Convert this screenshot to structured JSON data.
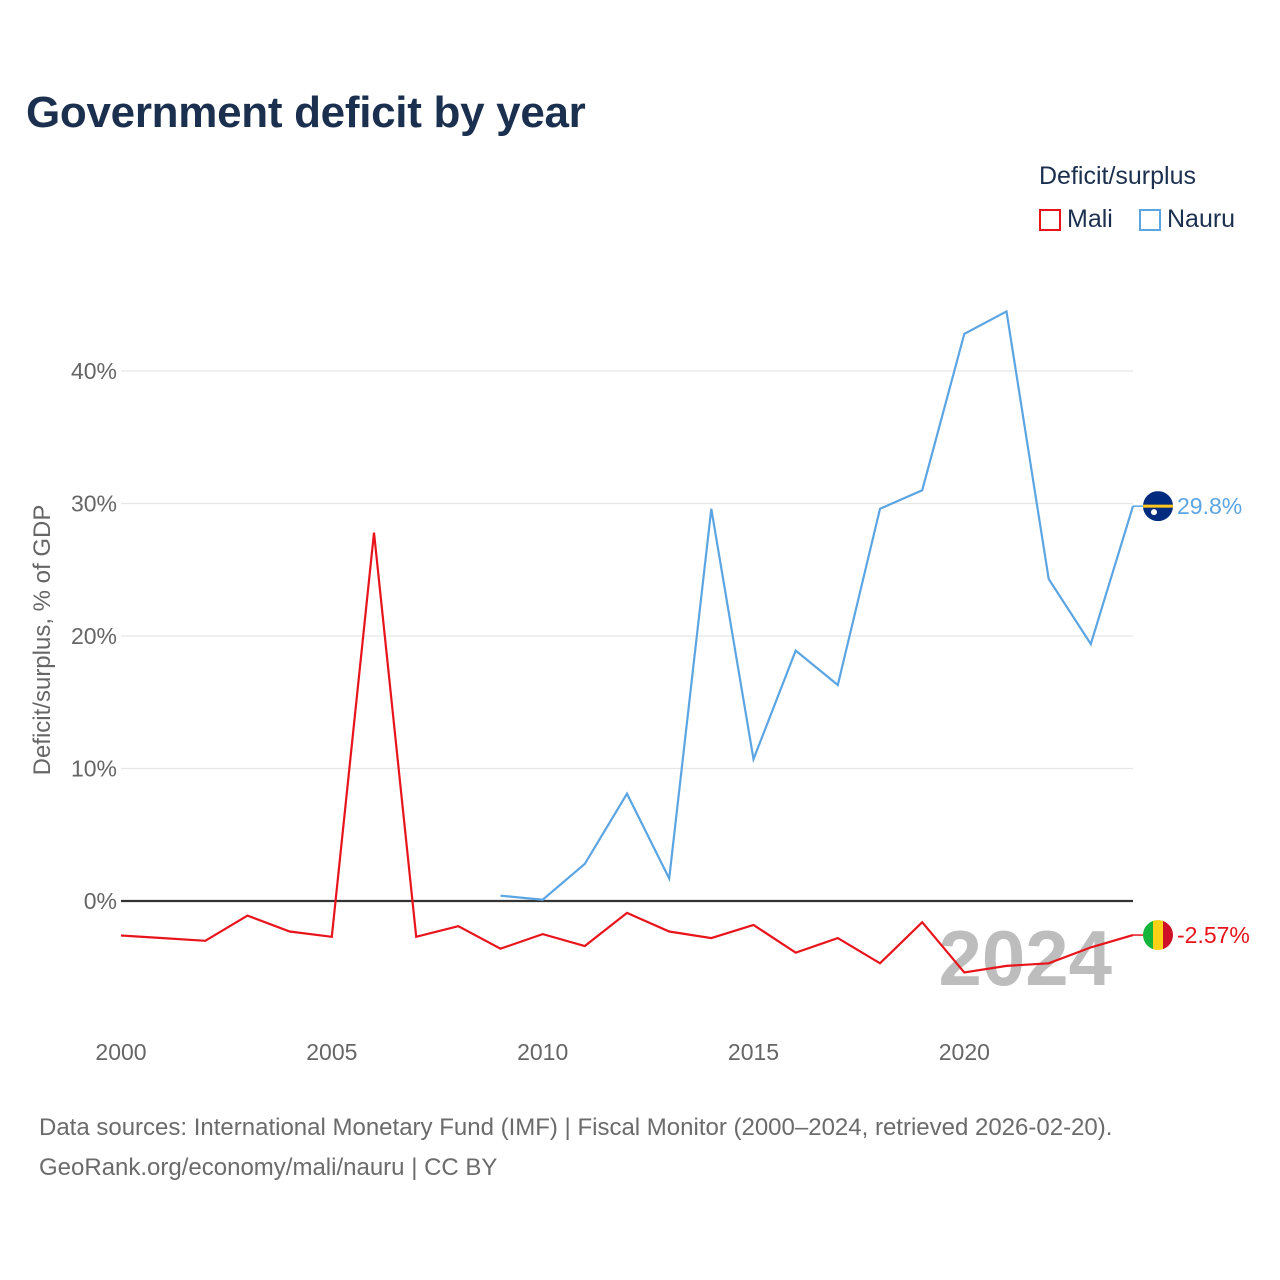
{
  "header": {
    "title": "Government deficit by year"
  },
  "legend": {
    "title": "Deficit/surplus",
    "items": [
      {
        "label": "Mali",
        "color": "#e8141b"
      },
      {
        "label": "Nauru",
        "color": "#5ca5e3"
      }
    ]
  },
  "source": {
    "line1": "Data sources: International Monetary Fund (IMF) | Fiscal Monitor (2000–2024, retrieved 2026-02-20).",
    "line2": "GeoRank.org/economy/mali/nauru | CC BY"
  },
  "chart_data": {
    "type": "line",
    "title": "Government deficit by year",
    "xlabel": "",
    "ylabel": "Deficit/surplus, % of GDP",
    "xlim": [
      2000,
      2024
    ],
    "ylim": [
      -9,
      45
    ],
    "x_ticks": [
      2000,
      2005,
      2010,
      2015,
      2020
    ],
    "y_ticks": [
      0,
      10,
      20,
      30,
      40
    ],
    "y_tick_labels": [
      "0%",
      "10%",
      "20%",
      "30%",
      "40%"
    ],
    "grid": true,
    "legend_position": "top-right",
    "current_year_label": "2024",
    "series": [
      {
        "name": "Mali",
        "color": "#e8141b",
        "end_label": "-2.57%",
        "flag": "mali-flag",
        "x": [
          2000,
          2001,
          2002,
          2003,
          2004,
          2005,
          2006,
          2007,
          2008,
          2009,
          2010,
          2011,
          2012,
          2013,
          2014,
          2015,
          2016,
          2017,
          2018,
          2019,
          2020,
          2021,
          2022,
          2023,
          2024
        ],
        "values": [
          -2.6,
          -2.8,
          -3.0,
          -1.1,
          -2.3,
          -2.7,
          27.8,
          -2.7,
          -1.9,
          -3.6,
          -2.5,
          -3.4,
          -0.9,
          -2.3,
          -2.8,
          -1.8,
          -3.9,
          -2.8,
          -4.7,
          -1.6,
          -5.4,
          -4.9,
          -4.7,
          -3.5,
          -2.57
        ]
      },
      {
        "name": "Nauru",
        "color": "#5ca5e3",
        "end_label": "29.8%",
        "flag": "nauru-flag",
        "x": [
          2009,
          2010,
          2011,
          2012,
          2013,
          2014,
          2015,
          2016,
          2017,
          2018,
          2019,
          2020,
          2021,
          2022,
          2023,
          2024
        ],
        "values": [
          0.4,
          0.1,
          2.8,
          8.1,
          1.7,
          29.6,
          10.7,
          18.9,
          16.3,
          29.6,
          31.0,
          42.8,
          44.5,
          24.3,
          19.4,
          29.8
        ]
      }
    ]
  }
}
